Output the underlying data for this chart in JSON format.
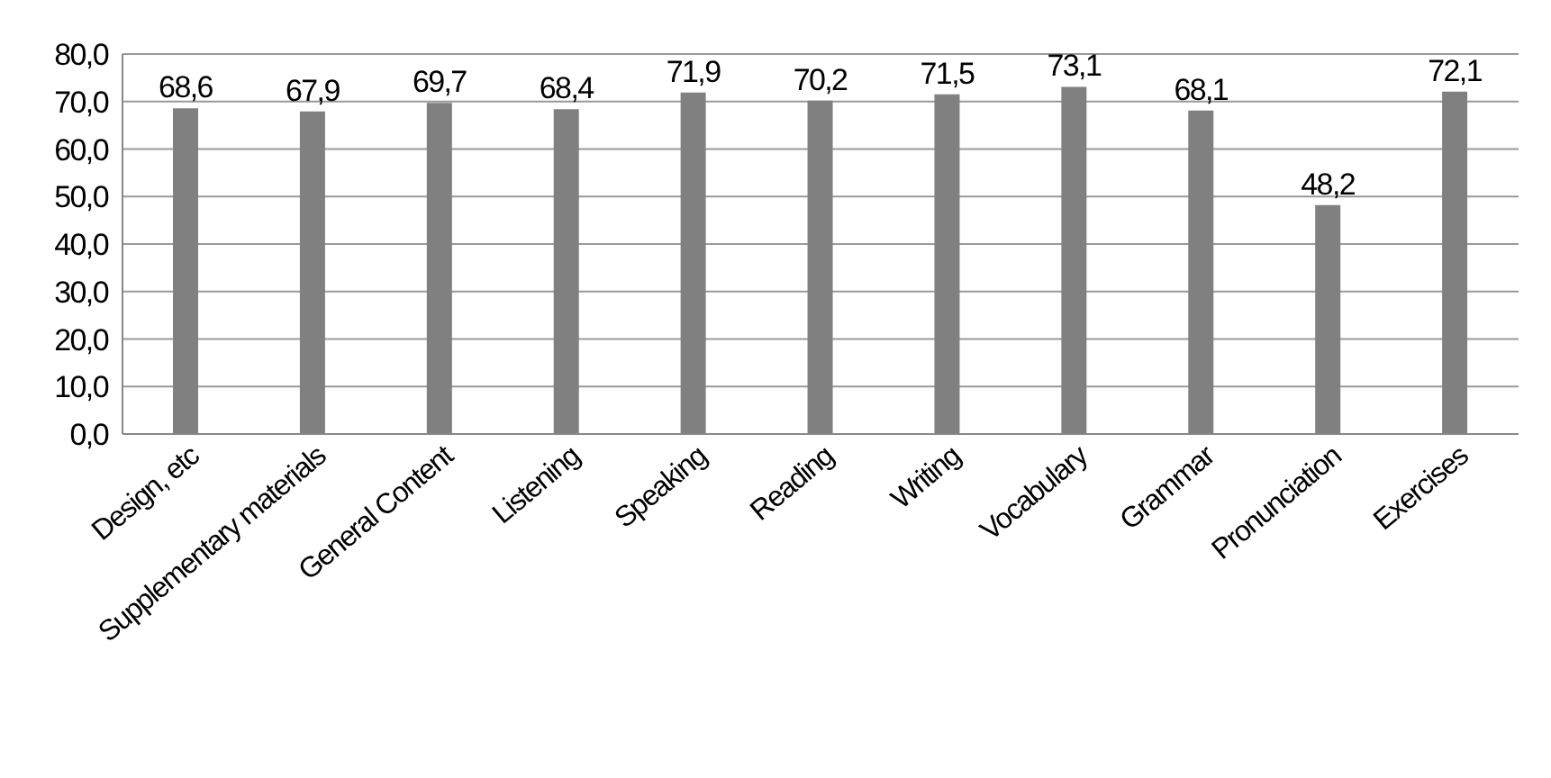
{
  "chart_data": {
    "type": "bar",
    "categories": [
      "Design, etc",
      "Supplementary materials",
      "General Content",
      "Listening",
      "Speaking",
      "Reading",
      "Writing",
      "Vocabulary",
      "Grammar",
      "Pronunciation",
      "Exercises"
    ],
    "values": [
      68.6,
      67.9,
      69.7,
      68.4,
      71.9,
      70.2,
      71.5,
      73.1,
      68.1,
      48.2,
      72.1
    ],
    "value_labels": [
      "68,6",
      "67,9",
      "69,7",
      "68,4",
      "71,9",
      "70,2",
      "71,5",
      "73,1",
      "68,1",
      "48,2",
      "72,1"
    ],
    "color": "#808080",
    "ylim": [
      0,
      80
    ],
    "yticks": [
      {
        "value": 0,
        "label": "0,0"
      },
      {
        "value": 10,
        "label": "10,0"
      },
      {
        "value": 20,
        "label": "20,0"
      },
      {
        "value": 30,
        "label": "30,0"
      },
      {
        "value": 40,
        "label": "40,0"
      },
      {
        "value": 50,
        "label": "50,0"
      },
      {
        "value": 60,
        "label": "60,0"
      },
      {
        "value": 70,
        "label": "70,0"
      },
      {
        "value": 80,
        "label": "80,0"
      }
    ],
    "grid": "y",
    "legend": false
  }
}
